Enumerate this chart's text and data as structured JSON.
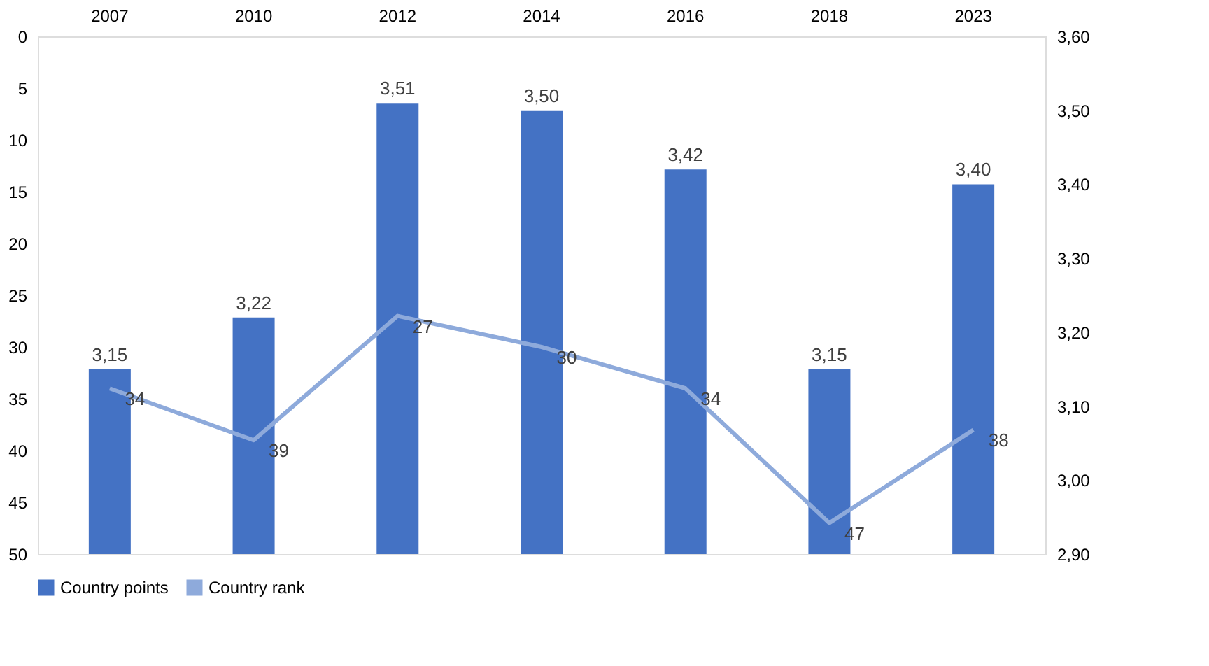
{
  "chart_data": {
    "type": "bar",
    "categories": [
      "2007",
      "2010",
      "2012",
      "2014",
      "2016",
      "2018",
      "2023"
    ],
    "series": [
      {
        "name": "Country points",
        "axis": "y2",
        "color": "#4472c4",
        "values": [
          3.15,
          3.22,
          3.51,
          3.5,
          3.42,
          3.15,
          3.4
        ],
        "value_labels": [
          "3,15",
          "3,22",
          "3,51",
          "3,50",
          "3,42",
          "3,15",
          "3,40"
        ]
      },
      {
        "name": "Country rank",
        "type": "line",
        "axis": "y",
        "color": "#8eaadb",
        "values": [
          34,
          39,
          27,
          30,
          34,
          47,
          38
        ],
        "value_labels": [
          "34",
          "39",
          "27",
          "30",
          "34",
          "47",
          "38"
        ]
      }
    ],
    "ylim": [
      50,
      0
    ],
    "yticks": [
      0,
      5,
      10,
      15,
      20,
      25,
      30,
      35,
      40,
      45,
      50
    ],
    "y2lim": [
      2.9,
      3.6
    ],
    "y2ticks": [
      {
        "value": 2.9,
        "label": "2,90"
      },
      {
        "value": 3.0,
        "label": "3,00"
      },
      {
        "value": 3.1,
        "label": "3,10"
      },
      {
        "value": 3.2,
        "label": "3,20"
      },
      {
        "value": 3.3,
        "label": "3,30"
      },
      {
        "value": 3.4,
        "label": "3,40"
      },
      {
        "value": 3.5,
        "label": "3,50"
      },
      {
        "value": 3.6,
        "label": "3,60"
      }
    ],
    "legend": "bottom",
    "grid": false,
    "marker": "none",
    "line_style": "solid"
  }
}
